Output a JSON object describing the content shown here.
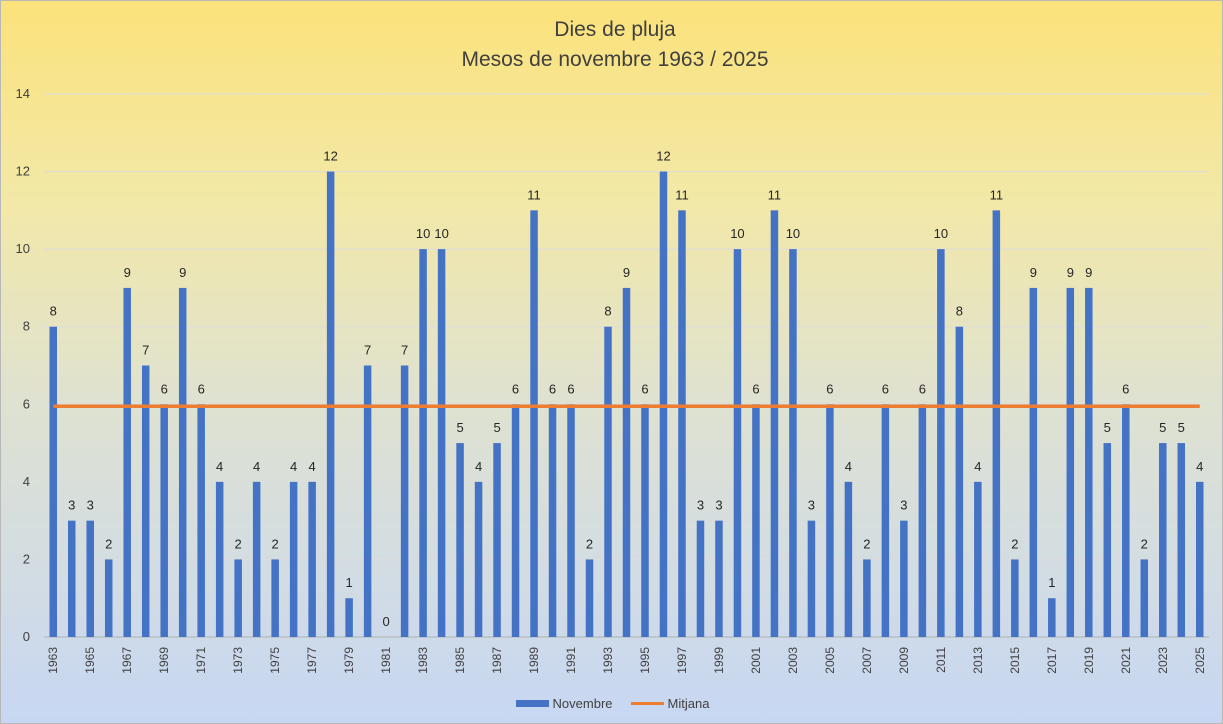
{
  "chart_data": {
    "type": "bar",
    "title": "Dies de pluja",
    "subtitle": "Mesos de novembre 1963 / 2025",
    "xlabel": "",
    "ylabel": "",
    "ylim": [
      0,
      14
    ],
    "yticks": [
      0,
      2,
      4,
      6,
      8,
      10,
      12,
      14
    ],
    "grid": true,
    "legend_position": "bottom",
    "categories": [
      "1963",
      "1964",
      "1965",
      "1966",
      "1967",
      "1968",
      "1969",
      "1970",
      "1971",
      "1972",
      "1973",
      "1974",
      "1975",
      "1976",
      "1977",
      "1978",
      "1979",
      "1980",
      "1981",
      "1982",
      "1983",
      "1984",
      "1985",
      "1986",
      "1987",
      "1988",
      "1989",
      "1990",
      "1991",
      "1992",
      "1993",
      "1994",
      "1995",
      "1996",
      "1997",
      "1998",
      "1999",
      "2000",
      "2001",
      "2002",
      "2003",
      "2004",
      "2005",
      "2006",
      "2007",
      "2008",
      "2009",
      "2010",
      "2011",
      "2012",
      "2013",
      "2014",
      "2015",
      "2016",
      "2017",
      "2018",
      "2019",
      "2020",
      "2021",
      "2022",
      "2023",
      "2024",
      "2025"
    ],
    "x_tick_labels": [
      "1963",
      "1965",
      "1967",
      "1969",
      "1971",
      "1973",
      "1975",
      "1977",
      "1979",
      "1981",
      "1983",
      "1985",
      "1987",
      "1989",
      "1991",
      "1993",
      "1995",
      "1997",
      "1999",
      "2001",
      "2003",
      "2005",
      "2007",
      "2009",
      "2011",
      "2013",
      "2015",
      "2017",
      "2019",
      "2021",
      "2023",
      "2025"
    ],
    "series": [
      {
        "name": "Novembre",
        "type": "bar",
        "color": "#4472c4",
        "values": [
          8,
          3,
          3,
          2,
          9,
          7,
          6,
          9,
          6,
          4,
          2,
          4,
          2,
          4,
          4,
          12,
          1,
          7,
          0,
          7,
          10,
          10,
          5,
          4,
          5,
          6,
          11,
          6,
          6,
          2,
          8,
          9,
          6,
          12,
          11,
          3,
          3,
          10,
          6,
          11,
          10,
          3,
          6,
          4,
          2,
          6,
          3,
          6,
          10,
          8,
          4,
          11,
          2,
          9,
          1,
          9,
          9,
          5,
          6,
          2,
          5,
          5,
          4
        ]
      },
      {
        "name": "Mitjana",
        "type": "line",
        "color": "#ed7d31",
        "value": 5.95
      }
    ]
  }
}
